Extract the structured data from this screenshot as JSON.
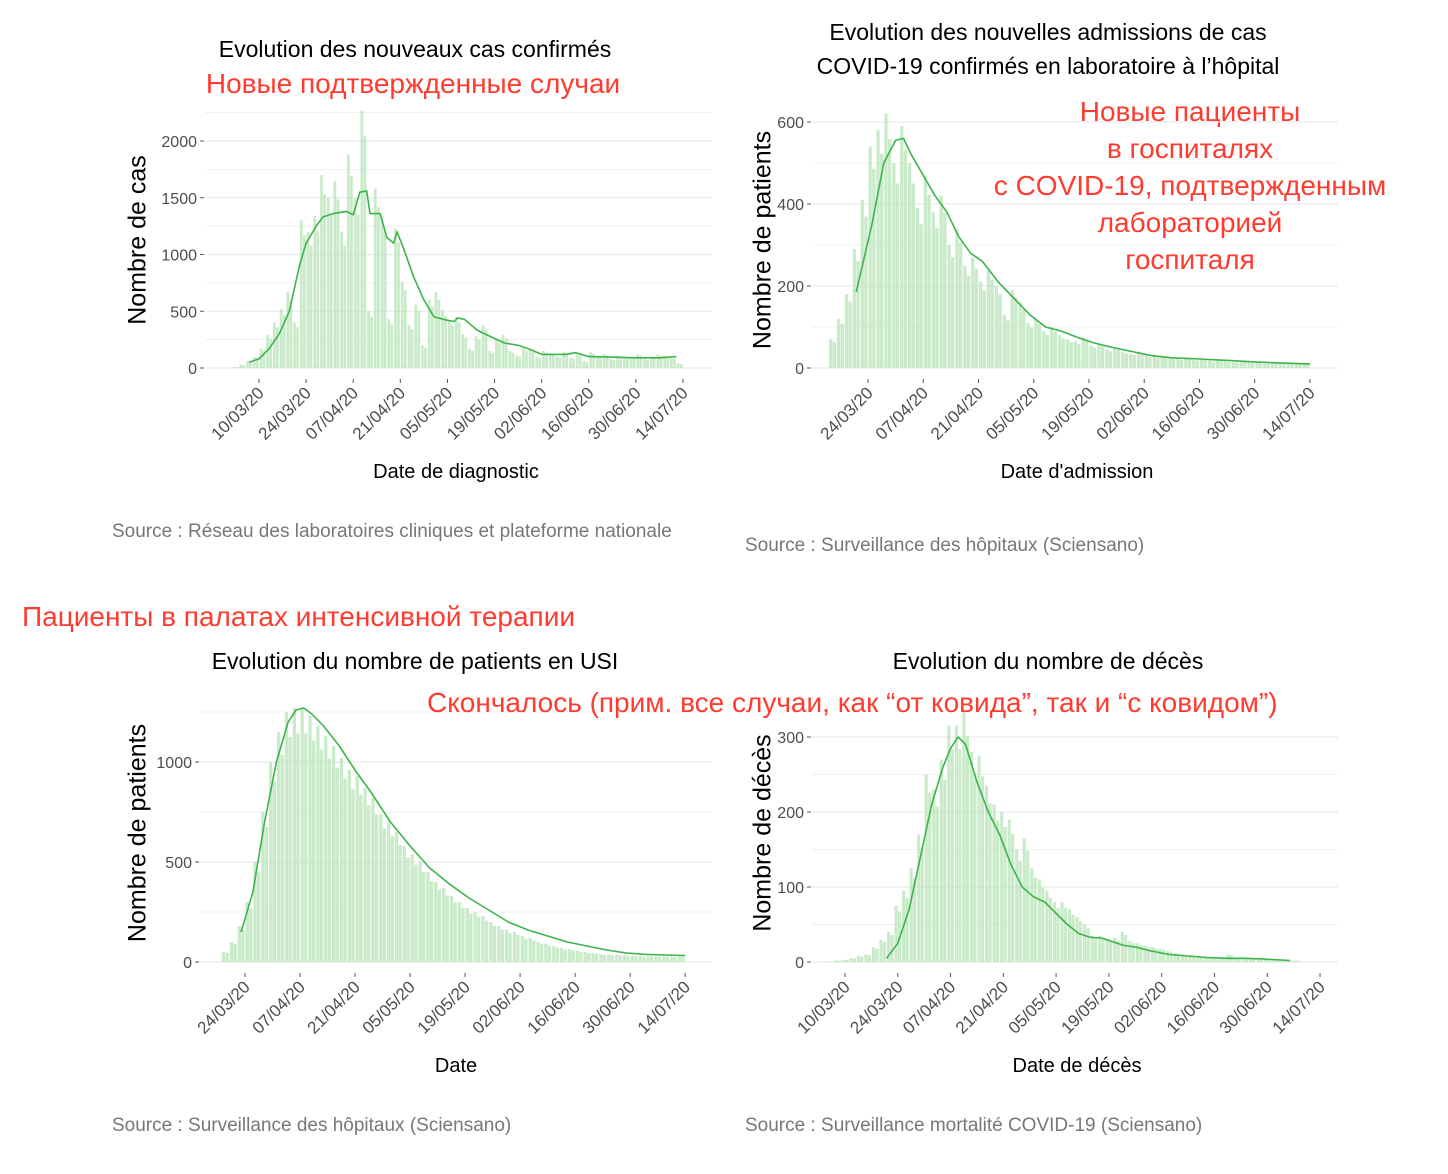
{
  "colors": {
    "bar": "#b8e4b8",
    "line": "#3cb44b",
    "grid": "#ebebeb",
    "annotation": "#ff3b30"
  },
  "annotations": {
    "cases_ru": "Новые подтвержденные случаи",
    "hosp_ru": [
      "Новые пациенты",
      "в госпиталях",
      "с COVID-19, подтвержденным",
      "лабораторией",
      "госпиталя"
    ],
    "icu_ru": "Пациенты в палатах интенсивной терапии",
    "deaths_ru": "Скончалось (прим. все случаи, как “от ковида”, так и “с ковидом”)"
  },
  "chart_data": [
    {
      "id": "cases",
      "type": "bar+line",
      "title": [
        "Evolution des nouveaux cas confirmés"
      ],
      "xlabel": "Date de diagnostic",
      "ylabel": "Nombre de cas",
      "source": "Source : Réseau des laboratoires cliniques et plateforme nationale",
      "x_unit": "days since 01/03/20",
      "xlim": [
        -7,
        143
      ],
      "ylim": [
        0,
        2300
      ],
      "yticks": [
        0,
        500,
        1000,
        1500,
        2000
      ],
      "xticks": [
        [
          9,
          "10/03/20"
        ],
        [
          23,
          "24/03/20"
        ],
        [
          37,
          "07/04/20"
        ],
        [
          51,
          "21/04/20"
        ],
        [
          65,
          "05/05/20"
        ],
        [
          79,
          "19/05/20"
        ],
        [
          93,
          "02/06/20"
        ],
        [
          107,
          "16/06/20"
        ],
        [
          121,
          "30/06/20"
        ],
        [
          135,
          "14/07/20"
        ]
      ],
      "bars_start": 2,
      "bars_step": 2,
      "bars": [
        10,
        30,
        60,
        100,
        170,
        290,
        400,
        520,
        670,
        400,
        1300,
        1200,
        1340,
        1700,
        1500,
        1650,
        1200,
        1880,
        1500,
        2270,
        500,
        1580,
        1340,
        430,
        1230,
        760,
        380,
        560,
        200,
        600,
        670,
        510,
        420,
        450,
        300,
        170,
        280,
        380,
        150,
        250,
        290,
        150,
        110,
        170,
        160,
        100,
        150,
        130,
        100,
        140,
        90,
        120,
        60,
        140,
        100,
        120,
        80,
        110,
        100,
        90,
        120,
        80,
        100,
        120,
        110,
        90,
        40
      ],
      "smoothed": [
        [
          6,
          50
        ],
        [
          9,
          80
        ],
        [
          12,
          170
        ],
        [
          15,
          300
        ],
        [
          18,
          500
        ],
        [
          21,
          900
        ],
        [
          23,
          1100
        ],
        [
          26,
          1250
        ],
        [
          28,
          1330
        ],
        [
          31,
          1360
        ],
        [
          35,
          1380
        ],
        [
          37,
          1350
        ],
        [
          39,
          1550
        ],
        [
          41,
          1560
        ],
        [
          42,
          1360
        ],
        [
          45,
          1360
        ],
        [
          47,
          1150
        ],
        [
          49,
          1100
        ],
        [
          50,
          1200
        ],
        [
          52,
          1050
        ],
        [
          55,
          800
        ],
        [
          58,
          600
        ],
        [
          61,
          450
        ],
        [
          65,
          420
        ],
        [
          67,
          410
        ],
        [
          68,
          440
        ],
        [
          70,
          430
        ],
        [
          74,
          330
        ],
        [
          79,
          260
        ],
        [
          82,
          220
        ],
        [
          86,
          200
        ],
        [
          89,
          170
        ],
        [
          93,
          120
        ],
        [
          100,
          120
        ],
        [
          103,
          135
        ],
        [
          107,
          100
        ],
        [
          115,
          95
        ],
        [
          121,
          90
        ],
        [
          128,
          90
        ],
        [
          133,
          100
        ]
      ]
    },
    {
      "id": "hosp",
      "type": "bar+line",
      "title": [
        "Evolution des nouvelles admissions de cas",
        "COVID-19 confirmés en laboratoire à l’hôpital"
      ],
      "xlabel": "Date d'admission",
      "ylabel": "Nombre de patients",
      "source": "Source : Surveillance des hôpitaux (Sciensano)",
      "x_unit": "days since 01/03/20",
      "xlim": [
        9,
        142
      ],
      "ylim": [
        0,
        630
      ],
      "yticks": [
        0,
        200,
        400,
        600
      ],
      "xticks": [
        [
          23,
          "24/03/20"
        ],
        [
          37,
          "07/04/20"
        ],
        [
          51,
          "21/04/20"
        ],
        [
          65,
          "05/05/20"
        ],
        [
          79,
          "19/05/20"
        ],
        [
          93,
          "02/06/20"
        ],
        [
          107,
          "16/06/20"
        ],
        [
          121,
          "30/06/20"
        ],
        [
          135,
          "14/07/20"
        ]
      ],
      "bars_start": 14,
      "bars_step": 2,
      "bars": [
        70,
        120,
        180,
        290,
        410,
        540,
        580,
        620,
        500,
        590,
        500,
        390,
        470,
        380,
        420,
        300,
        340,
        250,
        270,
        210,
        240,
        200,
        130,
        190,
        160,
        110,
        120,
        90,
        100,
        80,
        70,
        65,
        75,
        55,
        60,
        45,
        50,
        40,
        35,
        40,
        30,
        28,
        30,
        25,
        22,
        25,
        20,
        22,
        18,
        20,
        16,
        15,
        18,
        14,
        14,
        12,
        13,
        12,
        10,
        10,
        12
      ],
      "smoothed": [
        [
          20,
          185
        ],
        [
          24,
          350
        ],
        [
          27,
          500
        ],
        [
          30,
          555
        ],
        [
          32,
          560
        ],
        [
          34,
          520
        ],
        [
          37,
          470
        ],
        [
          40,
          420
        ],
        [
          43,
          380
        ],
        [
          46,
          320
        ],
        [
          49,
          280
        ],
        [
          52,
          260
        ],
        [
          56,
          210
        ],
        [
          60,
          170
        ],
        [
          64,
          130
        ],
        [
          68,
          100
        ],
        [
          72,
          90
        ],
        [
          76,
          75
        ],
        [
          80,
          62
        ],
        [
          85,
          50
        ],
        [
          90,
          40
        ],
        [
          95,
          30
        ],
        [
          100,
          25
        ],
        [
          107,
          22
        ],
        [
          115,
          18
        ],
        [
          121,
          15
        ],
        [
          128,
          12
        ],
        [
          135,
          10
        ]
      ]
    },
    {
      "id": "icu",
      "type": "bar+line",
      "title": [
        "Evolution du nombre de patients en USI"
      ],
      "xlabel": "Date",
      "ylabel": "Nombre de patients",
      "source": "Source : Surveillance des hôpitaux (Sciensano)",
      "x_unit": "days since 01/03/20",
      "xlim": [
        11,
        142
      ],
      "ylim": [
        0,
        1300
      ],
      "yticks": [
        0,
        500,
        1000
      ],
      "xticks": [
        [
          23,
          "24/03/20"
        ],
        [
          37,
          "07/04/20"
        ],
        [
          51,
          "21/04/20"
        ],
        [
          65,
          "05/05/20"
        ],
        [
          79,
          "19/05/20"
        ],
        [
          93,
          "02/06/20"
        ],
        [
          107,
          "16/06/20"
        ],
        [
          121,
          "30/06/20"
        ],
        [
          135,
          "14/07/20"
        ]
      ],
      "bars_start": 18,
      "bars_step": 2,
      "bars": [
        50,
        100,
        180,
        300,
        500,
        750,
        1000,
        1150,
        1250,
        1270,
        1270,
        1230,
        1180,
        1130,
        1080,
        1020,
        960,
        930,
        870,
        820,
        740,
        700,
        650,
        580,
        540,
        500,
        450,
        400,
        370,
        330,
        300,
        270,
        250,
        230,
        200,
        180,
        160,
        150,
        130,
        120,
        100,
        90,
        80,
        70,
        65,
        55,
        50,
        45,
        40,
        38,
        35,
        33,
        32,
        30,
        30,
        28,
        28,
        27,
        27
      ],
      "smoothed": [
        [
          22,
          150
        ],
        [
          25,
          350
        ],
        [
          28,
          700
        ],
        [
          31,
          1000
        ],
        [
          34,
          1200
        ],
        [
          36,
          1260
        ],
        [
          38,
          1270
        ],
        [
          40,
          1240
        ],
        [
          43,
          1180
        ],
        [
          47,
          1080
        ],
        [
          51,
          960
        ],
        [
          55,
          850
        ],
        [
          60,
          700
        ],
        [
          65,
          580
        ],
        [
          70,
          470
        ],
        [
          75,
          390
        ],
        [
          80,
          320
        ],
        [
          85,
          260
        ],
        [
          90,
          200
        ],
        [
          95,
          160
        ],
        [
          100,
          130
        ],
        [
          105,
          100
        ],
        [
          110,
          80
        ],
        [
          115,
          60
        ],
        [
          120,
          45
        ],
        [
          125,
          38
        ],
        [
          130,
          35
        ],
        [
          135,
          32
        ]
      ]
    },
    {
      "id": "deaths",
      "type": "bar+line",
      "title": [
        "Evolution du nombre de décès"
      ],
      "xlabel": "Date de décès",
      "ylabel": "Nombre de décès",
      "source": "Source : Surveillance mortalité COVID-19 (Sciensano)",
      "x_unit": "days since 01/03/20",
      "xlim": [
        0,
        140
      ],
      "ylim": [
        0,
        340
      ],
      "yticks": [
        0,
        100,
        200,
        300
      ],
      "xticks": [
        [
          9,
          "10/03/20"
        ],
        [
          23,
          "24/03/20"
        ],
        [
          37,
          "07/04/20"
        ],
        [
          51,
          "21/04/20"
        ],
        [
          65,
          "05/05/20"
        ],
        [
          79,
          "19/05/20"
        ],
        [
          93,
          "02/06/20"
        ],
        [
          107,
          "16/06/20"
        ],
        [
          121,
          "30/06/20"
        ],
        [
          135,
          "14/07/20"
        ]
      ],
      "bars_start": 5,
      "bars_step": 2,
      "bars": [
        1,
        2,
        3,
        5,
        8,
        10,
        20,
        30,
        40,
        75,
        95,
        125,
        170,
        250,
        230,
        270,
        315,
        315,
        335,
        280,
        275,
        235,
        210,
        200,
        190,
        150,
        165,
        125,
        110,
        95,
        80,
        80,
        70,
        60,
        50,
        35,
        35,
        30,
        32,
        40,
        28,
        25,
        22,
        20,
        18,
        15,
        12,
        10,
        8,
        8,
        6,
        7,
        7,
        10,
        6,
        5,
        6,
        5,
        4,
        3,
        3,
        2,
        2
      ],
      "smoothed": [
        [
          20,
          5
        ],
        [
          23,
          25
        ],
        [
          26,
          70
        ],
        [
          29,
          140
        ],
        [
          32,
          210
        ],
        [
          35,
          260
        ],
        [
          37,
          285
        ],
        [
          39,
          300
        ],
        [
          41,
          290
        ],
        [
          44,
          240
        ],
        [
          47,
          200
        ],
        [
          50,
          170
        ],
        [
          53,
          130
        ],
        [
          56,
          100
        ],
        [
          59,
          87
        ],
        [
          62,
          80
        ],
        [
          65,
          65
        ],
        [
          68,
          50
        ],
        [
          71,
          38
        ],
        [
          74,
          33
        ],
        [
          77,
          32
        ],
        [
          80,
          27
        ],
        [
          83,
          22
        ],
        [
          86,
          20
        ],
        [
          90,
          15
        ],
        [
          95,
          10
        ],
        [
          100,
          8
        ],
        [
          105,
          6
        ],
        [
          110,
          5
        ],
        [
          115,
          5
        ],
        [
          120,
          4
        ],
        [
          127,
          2
        ]
      ]
    }
  ]
}
